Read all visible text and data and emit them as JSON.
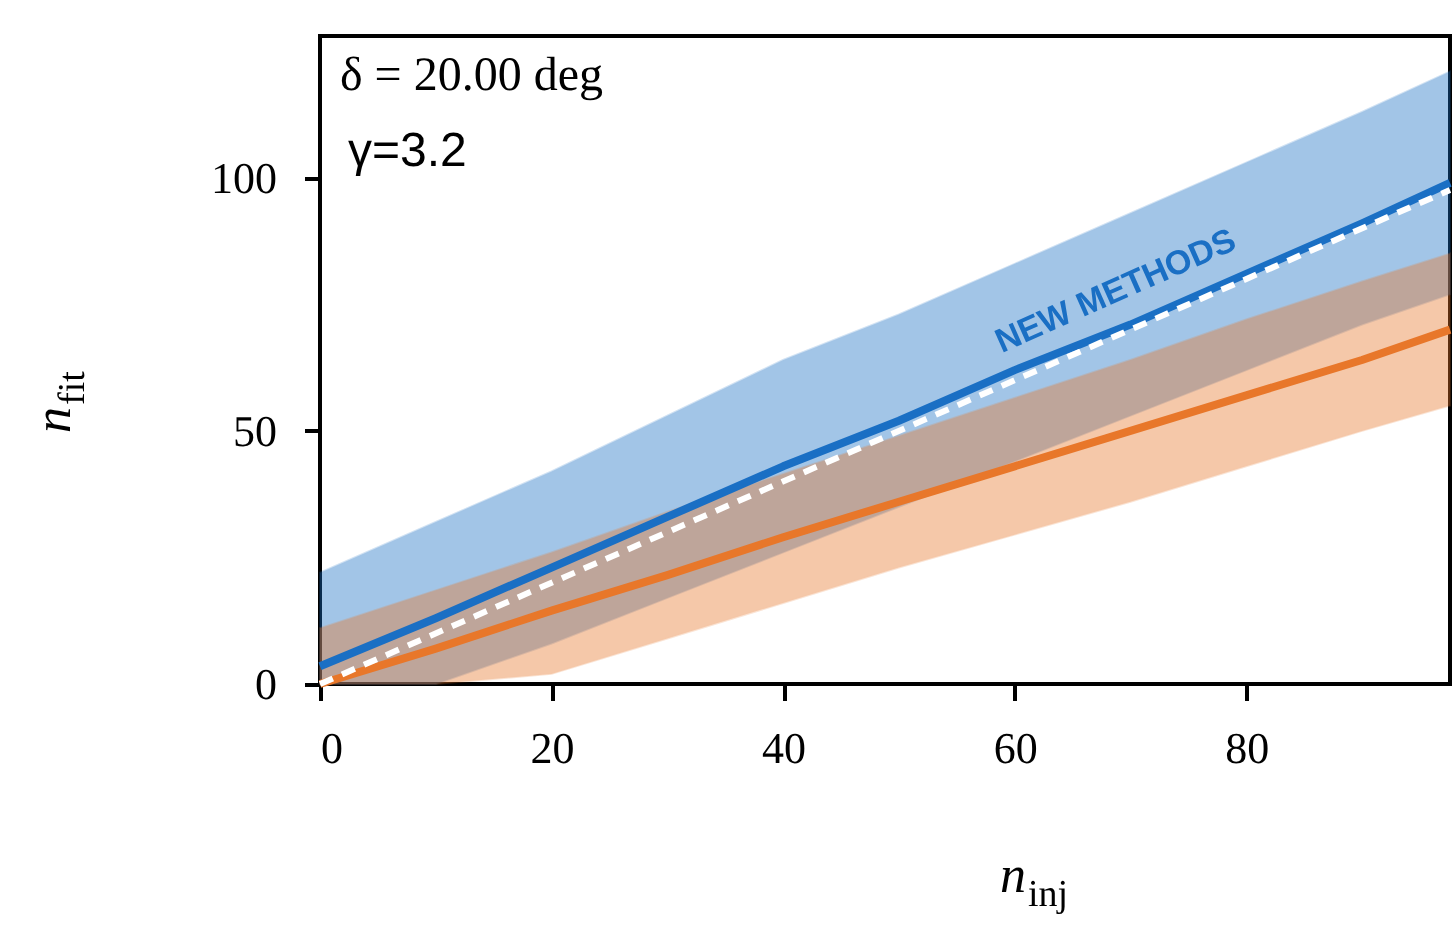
{
  "chart_data": {
    "type": "line",
    "xlabel": "n$_{inj}$",
    "ylabel": "n$_{fit}$",
    "annotations": [
      "δ = 20.00 deg",
      "γ=3.2"
    ],
    "x": [
      0,
      10,
      20,
      30,
      40,
      50,
      60,
      70,
      80,
      90,
      97.6
    ],
    "series": [
      {
        "name": "NEW METHODS",
        "color": "#1a6fc4",
        "values": [
          3.5,
          13,
          23,
          33,
          43,
          52,
          62,
          71,
          81,
          91,
          99
        ],
        "lower": [
          0,
          0,
          8,
          17,
          26,
          35,
          44,
          53,
          62,
          71,
          77
        ],
        "upper": [
          22,
          32,
          42,
          53,
          64,
          73,
          83,
          93,
          103,
          113,
          121
        ]
      },
      {
        "color": "#e8772a",
        "values": [
          0,
          7,
          14.5,
          21.5,
          29,
          36,
          43,
          50,
          57,
          64,
          70
        ],
        "lower": [
          0,
          0,
          2,
          9,
          16,
          23,
          29.5,
          36,
          43,
          50,
          55
        ],
        "upper": [
          11,
          18.5,
          26,
          34,
          41.5,
          49,
          56.5,
          64,
          72,
          79.5,
          85
        ]
      },
      {
        "color": "#ffffff",
        "line_style": "dashed",
        "x": [
          0,
          97.6
        ],
        "values": [
          0,
          97.6
        ]
      }
    ],
    "xlim": [
      0,
      97.6
    ],
    "ylim": [
      0,
      128
    ],
    "xticks": [
      0,
      20,
      40,
      60,
      80
    ],
    "yticks": [
      0,
      50,
      100
    ],
    "grid": false
  }
}
